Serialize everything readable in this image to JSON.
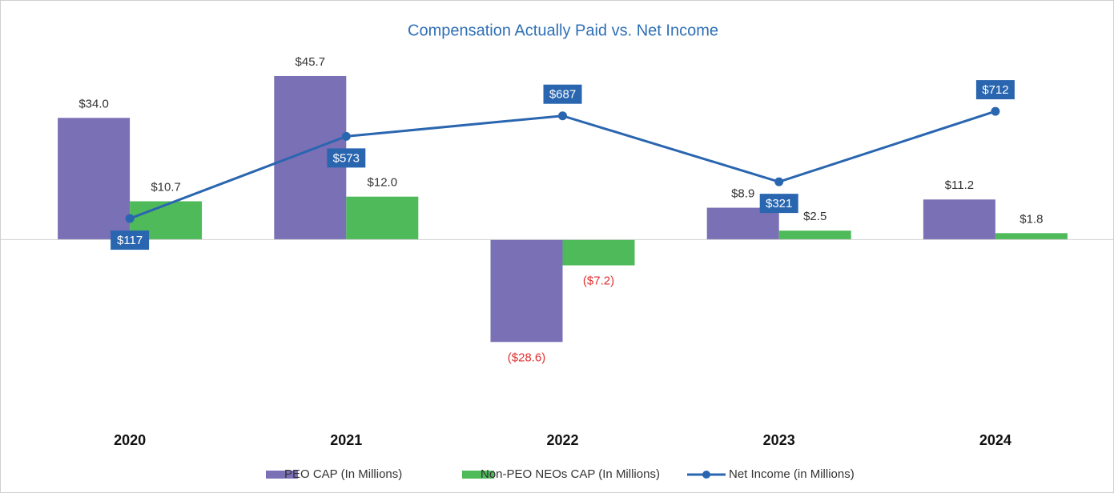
{
  "chart_data": {
    "type": "bar_line",
    "title": "Compensation Actually Paid vs. Net Income",
    "categories": [
      "2020",
      "2021",
      "2022",
      "2023",
      "2024"
    ],
    "series": [
      {
        "name": "PEO CAP (In Millions)",
        "color": "#7a70b6",
        "values": [
          34.0,
          45.7,
          -28.6,
          8.9,
          11.2
        ],
        "value_labels": [
          "$34.0",
          "$45.7",
          "($28.6)",
          "$8.9",
          "$11.2"
        ]
      },
      {
        "name": "Non-PEO NEOs CAP (In Millions)",
        "color": "#4fba5a",
        "values": [
          10.7,
          12.0,
          -7.2,
          2.5,
          1.8
        ],
        "value_labels": [
          "$10.7",
          "$12.0",
          "($7.2)",
          "$2.5",
          "$1.8"
        ]
      },
      {
        "name": "Net Income (in Millions)",
        "color": "#2a66b0",
        "axis": "y2",
        "type": "line",
        "values": [
          117,
          573,
          687,
          321,
          712
        ],
        "value_labels": [
          "$117",
          "$573",
          "$687",
          "$321",
          "$712"
        ]
      }
    ],
    "negative_label_color": "#e03030",
    "ylim": [
      -50,
      60
    ],
    "y2lim": [
      -993,
      1192
    ]
  }
}
